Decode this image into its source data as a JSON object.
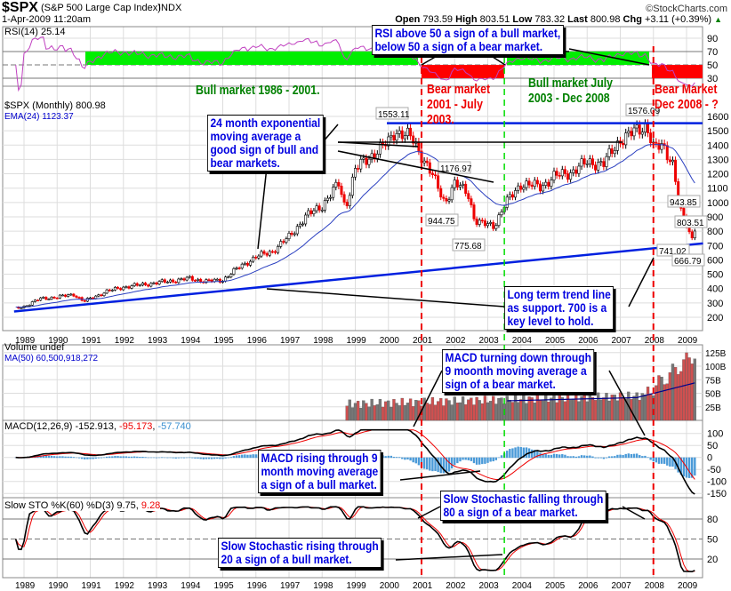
{
  "header": {
    "symbol": "$SPX",
    "name": "(S&P 500 Large Cap Index)",
    "exchange": "INDX",
    "datetime": "1-Apr-2009 11:20am",
    "copyright": "©StockCharts.com",
    "open_label": "Open",
    "open": "793.59",
    "high_label": "High",
    "high": "803.51",
    "low_label": "Low",
    "low": "783.32",
    "last_label": "Last",
    "last": "800.98",
    "chg_label": "Chg",
    "chg": "+3.11 (+0.39%)",
    "up_color": "#008000"
  },
  "chart_data": [
    {
      "type": "line",
      "title": "RSI(14) 25.14",
      "ylim": [
        10,
        100
      ],
      "yticks": [
        "90",
        "70",
        "50",
        "30"
      ],
      "levels": [
        70,
        50,
        30
      ]
    },
    {
      "type": "candlestick",
      "title": "$SPX (Monthly) 800.98",
      "legend": [
        "EMA(24) 1123.37"
      ],
      "ylim": [
        130,
        1660
      ],
      "yticks": [
        "1600",
        "1500",
        "1400",
        "1300",
        "1200",
        "1100",
        "1000",
        "900",
        "800",
        "700",
        "600",
        "500",
        "400",
        "300",
        "200"
      ],
      "xticks": [
        "1989",
        "1990",
        "1991",
        "1992",
        "1993",
        "1994",
        "1995",
        "1996",
        "1997",
        "1998",
        "1999",
        "2000",
        "2001",
        "2002",
        "2003",
        "2004",
        "2005",
        "2006",
        "2007",
        "2008",
        "2009"
      ],
      "close_anchors": [
        [
          1988.75,
          262
        ],
        [
          1989.0,
          275
        ],
        [
          1989.5,
          330
        ],
        [
          1990.0,
          340
        ],
        [
          1990.5,
          360
        ],
        [
          1990.8,
          310
        ],
        [
          1991.0,
          330
        ],
        [
          1991.5,
          380
        ],
        [
          1992.0,
          410
        ],
        [
          1993.0,
          440
        ],
        [
          1994.0,
          470
        ],
        [
          1994.5,
          450
        ],
        [
          1995.0,
          460
        ],
        [
          1995.5,
          550
        ],
        [
          1996.0,
          620
        ],
        [
          1996.5,
          660
        ],
        [
          1997.0,
          760
        ],
        [
          1997.5,
          900
        ],
        [
          1998.0,
          980
        ],
        [
          1998.5,
          1130
        ],
        [
          1998.7,
          960
        ],
        [
          1999.0,
          1230
        ],
        [
          1999.5,
          1330
        ],
        [
          2000.0,
          1420
        ],
        [
          2000.2,
          1500
        ],
        [
          2000.7,
          1450
        ],
        [
          2001.0,
          1330
        ],
        [
          2001.3,
          1200
        ],
        [
          2001.7,
          1000
        ],
        [
          2002.0,
          1130
        ],
        [
          2002.4,
          1070
        ],
        [
          2002.6,
          880
        ],
        [
          2002.8,
          850
        ],
        [
          2003.2,
          840
        ],
        [
          2003.5,
          980
        ],
        [
          2004.0,
          1130
        ],
        [
          2004.6,
          1110
        ],
        [
          2005.0,
          1180
        ],
        [
          2005.5,
          1210
        ],
        [
          2006.0,
          1280
        ],
        [
          2006.5,
          1270
        ],
        [
          2007.0,
          1440
        ],
        [
          2007.5,
          1500
        ],
        [
          2007.8,
          1540
        ],
        [
          2008.0,
          1380
        ],
        [
          2008.3,
          1390
        ],
        [
          2008.6,
          1270
        ],
        [
          2008.8,
          940
        ],
        [
          2009.0,
          850
        ],
        [
          2009.15,
          740
        ],
        [
          2009.25,
          800.98
        ]
      ],
      "point_labels": [
        "1553.11",
        "1576.09",
        "1176.97",
        "944.75",
        "775.68",
        "943.85",
        "803.51",
        "741.02",
        "666.79"
      ],
      "resistance_level": 1553,
      "support_line": [
        [
          1988.7,
          240
        ],
        [
          2009.5,
          715
        ]
      ]
    },
    {
      "type": "bar",
      "title": "Volume undef",
      "legend": [
        "MA(50) 60,500,918,272"
      ],
      "yticks": [
        "125B",
        "100B",
        "75B",
        "50B",
        "25B"
      ],
      "start": 1998.7,
      "ylim": [
        0,
        140
      ]
    },
    {
      "type": "line",
      "title": "MACD(12,26,9)",
      "values": [
        "-152.913",
        "-95.173",
        "-57.740"
      ],
      "yticks": [
        "100",
        "50",
        "0",
        "-50",
        "-100",
        "-150"
      ],
      "ylim": [
        -170,
        120
      ]
    },
    {
      "type": "line",
      "title": "Slow STO %K(60) %D(3)",
      "values": [
        "9.75",
        "9.28"
      ],
      "yticks": [
        "80",
        "50",
        "20"
      ],
      "ylim": [
        0,
        110
      ]
    }
  ],
  "markers": {
    "bear1_start": 2001.0,
    "bull2_start": 2003.5,
    "bear2_start": 2008.0
  },
  "annotations": {
    "rsi": [
      "RSI above 50 a sign of a bull market,",
      "below 50 a sign of a bear market."
    ],
    "bull1": "Bull market 1986 - 2001.",
    "bear1": [
      "Bear market",
      "2001 - July",
      "2003."
    ],
    "bull2": [
      "Bull market July",
      "2003 - Dec 2008"
    ],
    "bear2": [
      "Bear Market",
      "Dec 2008 - ?"
    ],
    "ema": [
      "24 month exponential",
      "moving average a",
      "good sign of bull and",
      "bear markets."
    ],
    "trend": [
      "Long term trend line",
      "as support. 700 is a",
      "key level to hold."
    ],
    "macd_down": [
      "MACD turning down through",
      "9 moonth moving average a",
      "sign of a bear market."
    ],
    "macd_up": [
      "MACD rising through 9",
      "month moving average",
      "a sign of a bull market."
    ],
    "sto_down": [
      "Slow Stochastic falling through",
      "80 a sign of a bear market."
    ],
    "sto_up": [
      "Slow Stochastic rising through",
      "20 a sign of a bull market."
    ]
  }
}
